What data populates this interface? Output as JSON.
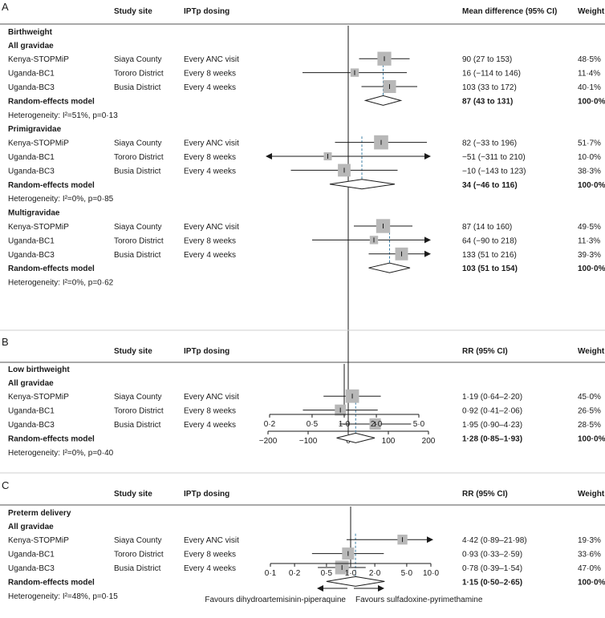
{
  "header": {
    "study_site": "Study site",
    "dosing": "IPTp dosing",
    "weight": "Weight"
  },
  "legend": {
    "left": "Favours dihydroartemisinin-piperaquine",
    "right": "Favours sulfadoxine-pyrimethamine"
  },
  "colors": {
    "box": "#b8b8b8",
    "dashed_line": "#3d7fa6",
    "line": "#1a1a1a"
  },
  "chart_data": [
    {
      "type": "forest",
      "panel": "A",
      "effect_header": "Mean difference (95% CI)",
      "xlim": [
        -200,
        200
      ],
      "ticks": [
        -200,
        -100,
        0,
        100,
        200
      ],
      "tick_labels": [
        "−200",
        "−100",
        "0",
        "100",
        "200"
      ],
      "null_value": 0,
      "log_scale": false,
      "outcome": "Birthweight",
      "groups": [
        {
          "name": "All gravidae",
          "rows": [
            {
              "study": "Kenya-STOPMiP",
              "site": "Siaya County",
              "dosing": "Every ANC visit",
              "est": 90,
              "lo": 27,
              "hi": 153,
              "ci": "90 (27 to 153)",
              "weight": "48·5%",
              "w": 48.5
            },
            {
              "study": "Uganda-BC1",
              "site": "Tororo District",
              "dosing": "Every 8 weeks",
              "est": 16,
              "lo": -114,
              "hi": 146,
              "ci": "16 (−114 to 146)",
              "weight": "11·4%",
              "w": 11.4
            },
            {
              "study": "Uganda-BC3",
              "site": "Busia District",
              "dosing": "Every 4 weeks",
              "est": 103,
              "lo": 33,
              "hi": 172,
              "ci": "103 (33 to 172)",
              "weight": "40·1%",
              "w": 40.1
            }
          ],
          "pooled": {
            "label": "Random-effects model",
            "est": 87,
            "lo": 43,
            "hi": 131,
            "ci": "87 (43 to 131)",
            "weight": "100·0%"
          },
          "heterogeneity": "Heterogeneity: I²=51%, p=0·13"
        },
        {
          "name": "Primigravidae",
          "rows": [
            {
              "study": "Kenya-STOPMiP",
              "site": "Siaya County",
              "dosing": "Every ANC visit",
              "est": 82,
              "lo": -33,
              "hi": 196,
              "ci": "82 (−33 to 196)",
              "weight": "51·7%",
              "w": 51.7
            },
            {
              "study": "Uganda-BC1",
              "site": "Tororo District",
              "dosing": "Every 8 weeks",
              "est": -51,
              "lo": -311,
              "hi": 210,
              "ci": "−51 (−311 to 210)",
              "weight": "10·0%",
              "w": 10.0
            },
            {
              "study": "Uganda-BC3",
              "site": "Busia District",
              "dosing": "Every 4 weeks",
              "est": -10,
              "lo": -143,
              "hi": 123,
              "ci": "−10 (−143 to 123)",
              "weight": "38·3%",
              "w": 38.3
            }
          ],
          "pooled": {
            "label": "Random-effects model",
            "est": 34,
            "lo": -46,
            "hi": 116,
            "ci": "34 (−46 to 116)",
            "weight": "100·0%"
          },
          "heterogeneity": "Heterogeneity: I²=0%, p=0·85"
        },
        {
          "name": "Multigravidae",
          "rows": [
            {
              "study": "Kenya-STOPMiP",
              "site": "Siaya County",
              "dosing": "Every ANC visit",
              "est": 87,
              "lo": 14,
              "hi": 160,
              "ci": "87 (14 to 160)",
              "weight": "49·5%",
              "w": 49.5
            },
            {
              "study": "Uganda-BC1",
              "site": "Tororo District",
              "dosing": "Every 8 weeks",
              "est": 64,
              "lo": -90,
              "hi": 218,
              "ci": "64 (−90 to 218)",
              "weight": "11·3%",
              "w": 11.3
            },
            {
              "study": "Uganda-BC3",
              "site": "Busia District",
              "dosing": "Every 4 weeks",
              "est": 133,
              "lo": 51,
              "hi": 216,
              "ci": "133 (51 to 216)",
              "weight": "39·3%",
              "w": 39.3
            }
          ],
          "pooled": {
            "label": "Random-effects model",
            "est": 103,
            "lo": 51,
            "hi": 154,
            "ci": "103 (51 to 154)",
            "weight": "100·0%"
          },
          "heterogeneity": "Heterogeneity: I²=0%, p=0·62"
        }
      ]
    },
    {
      "type": "forest",
      "panel": "B",
      "effect_header": "RR (95% CI)",
      "xlim": [
        0.2,
        5.0
      ],
      "ticks": [
        0.2,
        0.5,
        1.0,
        2.0,
        5.0
      ],
      "tick_labels": [
        "0·2",
        "0·5",
        "1·0",
        "2·0",
        "5·0"
      ],
      "null_value": 1,
      "log_scale": true,
      "outcome": "Low birthweight",
      "groups": [
        {
          "name": "All gravidae",
          "rows": [
            {
              "study": "Kenya-STOPMiP",
              "site": "Siaya County",
              "dosing": "Every ANC visit",
              "est": 1.19,
              "lo": 0.64,
              "hi": 2.2,
              "ci": "1·19 (0·64–2·20)",
              "weight": "45·0%",
              "w": 45.0
            },
            {
              "study": "Uganda-BC1",
              "site": "Tororo District",
              "dosing": "Every 8 weeks",
              "est": 0.92,
              "lo": 0.41,
              "hi": 2.06,
              "ci": "0·92 (0·41–2·06)",
              "weight": "26·5%",
              "w": 26.5
            },
            {
              "study": "Uganda-BC3",
              "site": "Busia District",
              "dosing": "Every 4 weeks",
              "est": 1.95,
              "lo": 0.9,
              "hi": 4.23,
              "ci": "1·95 (0·90–4·23)",
              "weight": "28·5%",
              "w": 28.5
            }
          ],
          "pooled": {
            "label": "Random-effects model",
            "est": 1.28,
            "lo": 0.85,
            "hi": 1.93,
            "ci": "1·28 (0·85–1·93)",
            "weight": "100·0%"
          },
          "heterogeneity": "Heterogeneity: I²=0%, p=0·40"
        }
      ]
    },
    {
      "type": "forest",
      "panel": "C",
      "effect_header": "RR (95% CI)",
      "xlim": [
        0.1,
        10.0
      ],
      "ticks": [
        0.1,
        0.2,
        0.5,
        1.0,
        2.0,
        5.0,
        10.0
      ],
      "tick_labels": [
        "0·1",
        "0·2",
        "0·5",
        "1·0",
        "2·0",
        "5·0",
        "10·0"
      ],
      "null_value": 1,
      "log_scale": true,
      "outcome": "Preterm delivery",
      "groups": [
        {
          "name": "All gravidae",
          "rows": [
            {
              "study": "Kenya-STOPMiP",
              "site": "Siaya County",
              "dosing": "Every ANC visit",
              "est": 4.42,
              "lo": 0.89,
              "hi": 21.98,
              "ci": "4·42 (0·89–21·98)",
              "weight": "19·3%",
              "w": 19.3
            },
            {
              "study": "Uganda-BC1",
              "site": "Tororo District",
              "dosing": "Every 8 weeks",
              "est": 0.93,
              "lo": 0.33,
              "hi": 2.59,
              "ci": "0·93 (0·33–2·59)",
              "weight": "33·6%",
              "w": 33.6
            },
            {
              "study": "Uganda-BC3",
              "site": "Busia District",
              "dosing": "Every 4 weeks",
              "est": 0.78,
              "lo": 0.39,
              "hi": 1.54,
              "ci": "0·78 (0·39–1·54)",
              "weight": "47·0%",
              "w": 47.0
            }
          ],
          "pooled": {
            "label": "Random-effects model",
            "est": 1.15,
            "lo": 0.5,
            "hi": 2.65,
            "ci": "1·15 (0·50–2·65)",
            "weight": "100·0%"
          },
          "heterogeneity": "Heterogeneity: I²=48%, p=0·15"
        }
      ]
    }
  ]
}
